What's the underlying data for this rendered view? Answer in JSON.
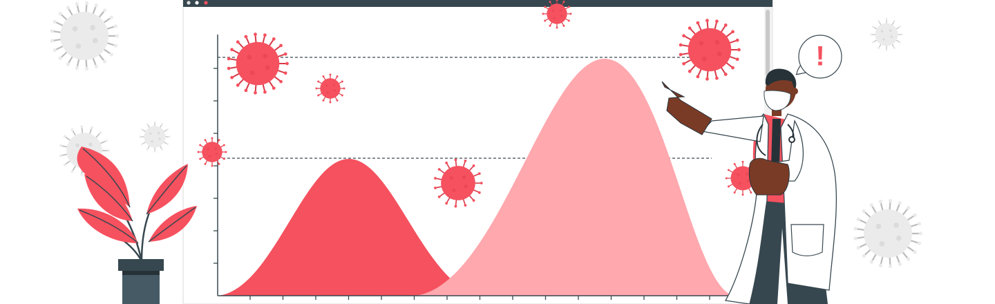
{
  "speech_bubble": {
    "text": "!"
  }
}
